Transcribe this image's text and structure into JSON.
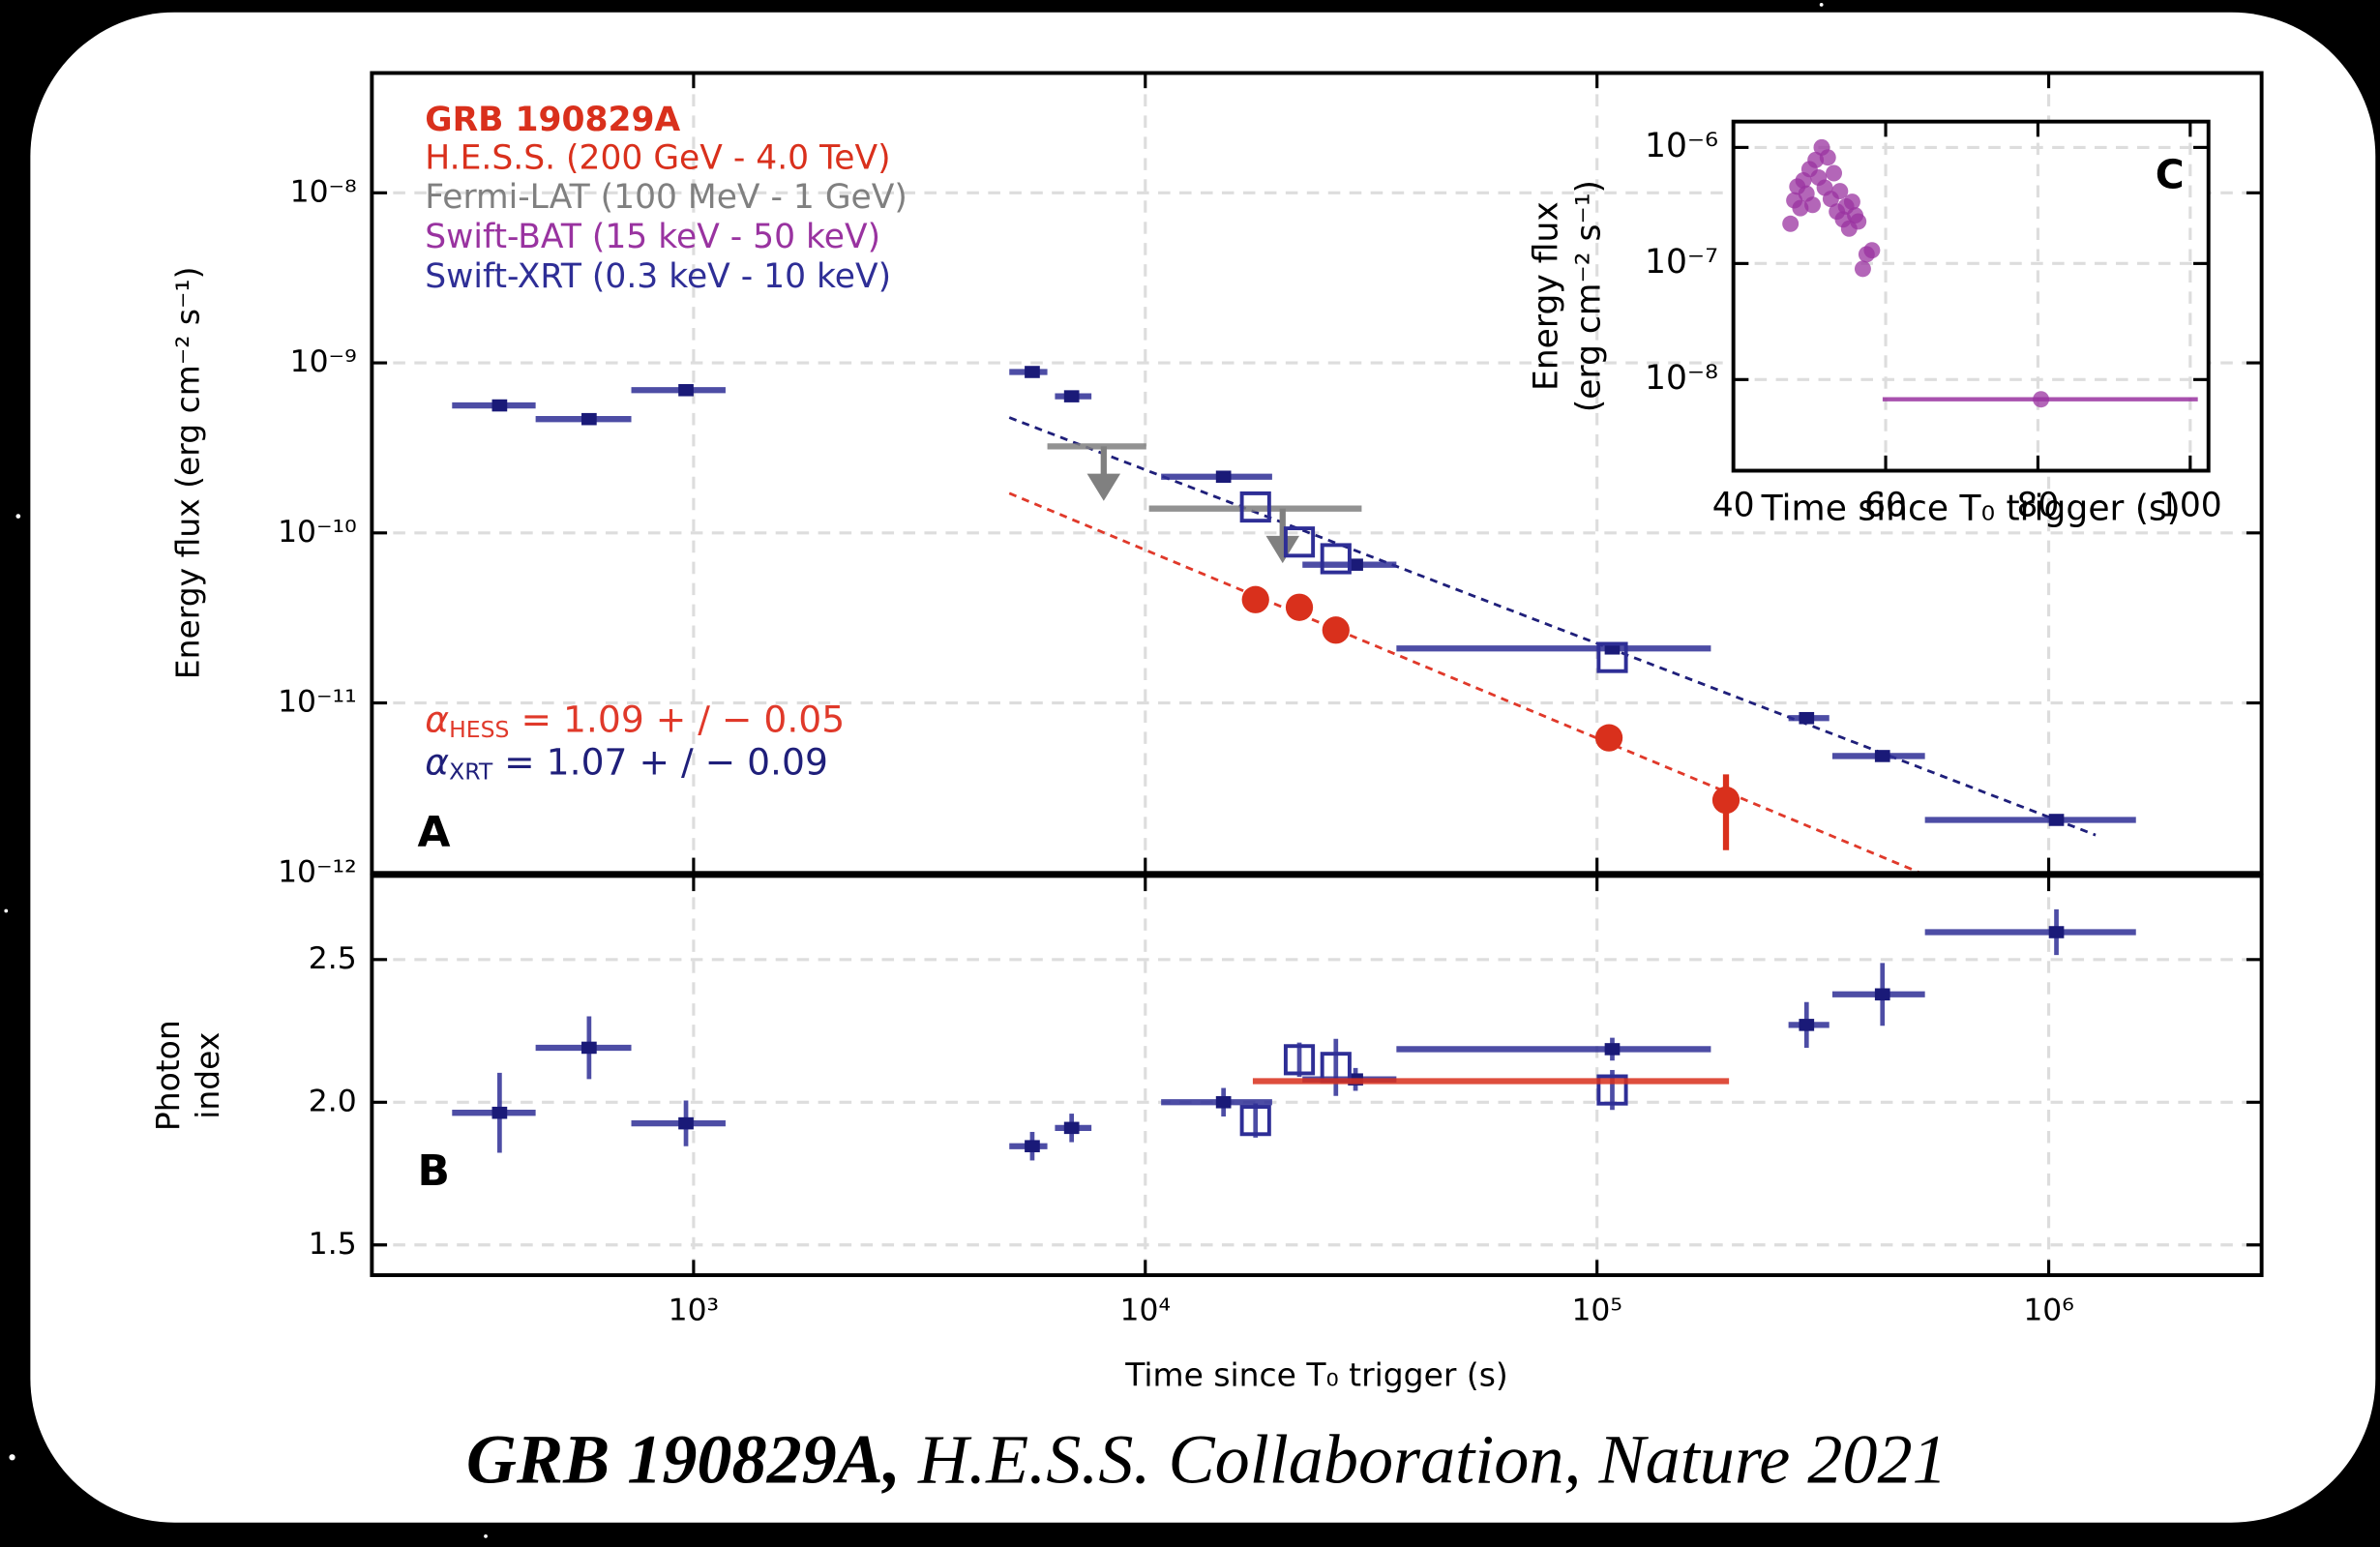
{
  "caption": {
    "title": "GRB 190829A,",
    "source": " H.E.S.S. Collaboration, Nature 2021"
  },
  "chart_data": [
    {
      "type": "scatter",
      "panel_label": "A",
      "legend_title": "GRB 190829A",
      "ylabel": "Energy flux (erg cm⁻² s⁻¹)",
      "xscale": "log",
      "yscale": "log",
      "grid": true,
      "xlim": [
        194,
        2960000
      ],
      "ylim": [
        1e-12,
        5.07e-08
      ],
      "yticks": [
        {
          "value": 1e-12,
          "label": "10⁻¹²"
        },
        {
          "value": 1e-11,
          "label": "10⁻¹¹"
        },
        {
          "value": 1e-10,
          "label": "10⁻¹⁰"
        },
        {
          "value": 1e-09,
          "label": "10⁻⁹"
        },
        {
          "value": 1e-08,
          "label": "10⁻⁸"
        }
      ],
      "series": [
        {
          "name": "H.E.S.S. (200 GeV - 4.0 TeV)",
          "color": "#d9301c",
          "marker": "circle",
          "x": [
            17540,
            21930,
            26420,
            106300,
            193000
          ],
          "values": [
            4.05e-11,
            3.65e-11,
            2.68e-11,
            6.23e-12,
            2.68e-12
          ],
          "y_low": [
            3.6e-11,
            3.2e-11,
            2.3e-11,
            5.5e-12,
            1.36e-12
          ],
          "y_high": [
            4.6e-11,
            4.1e-11,
            3.1e-11,
            7e-12,
            3.8e-12
          ]
        },
        {
          "name": "Fermi-LAT (100 MeV - 1 GeV)",
          "color": "#808080",
          "marker": "arrow",
          "x": [
            8090,
            20140
          ],
          "x_low": [
            6070,
            10190
          ],
          "x_high": [
            10050,
            30130
          ],
          "values": [
            3.23e-10,
            1.39e-10
          ]
        },
        {
          "name": "Swift-XRT (0.3 keV - 10 keV)",
          "color": "#2e2e96",
          "marker": "square",
          "x": [
            372,
            587,
            962,
            5620,
            6870,
            14900,
            29200,
            108100,
            291000,
            428500,
            1040000
          ],
          "x_low": [
            292,
            447,
            728,
            5000,
            6310,
            10840,
            22280,
            35970,
            265400,
            331900,
            532100
          ],
          "x_high": [
            447,
            728,
            1177,
            6070,
            7600,
            19090,
            35970,
            178700,
            326700,
            532100,
            1560000
          ],
          "values": [
            5.62e-10,
            4.67e-10,
            6.91e-10,
            8.84e-10,
            6.36e-10,
            2.14e-10,
            6.5e-11,
            2.09e-11,
            8.14e-12,
            4.87e-12,
            2.05e-12
          ]
        },
        {
          "color": "#2e2e96",
          "marker": "open-square",
          "x": [
            17540,
            21930,
            26420,
            108100
          ],
          "values": [
            1.42e-10,
            8.84e-11,
            7.05e-11,
            1.85e-11
          ]
        }
      ],
      "fits": [
        {
          "symbol": "α",
          "subscript": "HESS",
          "text": " = 1.09 + / − 0.05",
          "color": "#e0392a",
          "x": [
            5000,
            520000
          ],
          "values": [
            1.71e-10,
            1e-12
          ]
        },
        {
          "symbol": "α",
          "subscript": "XRT",
          "text": " = 1.07 + / − 0.09",
          "color": "#1f1f7a",
          "x": [
            5000,
            1270000
          ],
          "values": [
            4.77e-10,
            1.67e-12
          ]
        }
      ]
    },
    {
      "type": "scatter",
      "panel_label": "B",
      "ylabel": [
        "Photon",
        "index"
      ],
      "xlabel": "Time since T₀ trigger (s)",
      "xscale": "log",
      "yscale": "linear",
      "grid": true,
      "xlim": [
        194,
        2960000
      ],
      "ylim": [
        1.394,
        2.793
      ],
      "xticks": [
        {
          "value": 1000,
          "label": "10³"
        },
        {
          "value": 10000,
          "label": "10⁴"
        },
        {
          "value": 100000,
          "label": "10⁵"
        },
        {
          "value": 1000000,
          "label": "10⁶"
        }
      ],
      "yticks": [
        1.5,
        {
          "value": 2,
          "label": "2.0"
        },
        2.5
      ],
      "series": [
        {
          "color": "#2e2e96",
          "marker": "square",
          "x": [
            372,
            587,
            962,
            5620,
            6870,
            14900,
            29200,
            108100,
            291000,
            428500,
            1040000
          ],
          "x_low": [
            292,
            447,
            728,
            5000,
            6310,
            10840,
            22280,
            35970,
            265400,
            331900,
            532100
          ],
          "x_high": [
            447,
            728,
            1177,
            6070,
            7600,
            19090,
            35970,
            178700,
            326700,
            532100,
            1560000
          ],
          "values": [
            1.963,
            2.191,
            1.926,
            1.846,
            1.91,
            2.0,
            2.08,
            2.186,
            2.271,
            2.378,
            2.596
          ],
          "y_err": [
            0.14,
            0.11,
            0.08,
            0.05,
            0.05,
            0.05,
            0.04,
            0.04,
            0.08,
            0.11,
            0.08
          ]
        },
        {
          "color": "#2e2e96",
          "marker": "open-square",
          "x": [
            17540,
            21930,
            26420,
            108100
          ],
          "values": [
            1.936,
            2.149,
            2.122,
            2.043
          ],
          "y_err": [
            0.06,
            0.06,
            0.1,
            0.07
          ]
        },
        {
          "color": "#d9301c",
          "marker": "none",
          "x_low": [
            17300
          ],
          "x_high": [
            196000
          ],
          "values": [
            2.074
          ]
        }
      ]
    },
    {
      "type": "scatter",
      "panel_label": "C",
      "ylabel": [
        "Energy flux",
        "(erg cm⁻² s⁻¹)"
      ],
      "xlabel": "Time since T₀ trigger (s)",
      "xscale": "linear",
      "yscale": "log",
      "grid": true,
      "xlim": [
        40,
        102.4
      ],
      "ylim": [
        1.64e-09,
        1.67e-06
      ],
      "xticks": [
        40,
        60,
        80,
        100
      ],
      "yticks": [
        {
          "value": 1e-08,
          "label": "10⁻⁸"
        },
        {
          "value": 1e-07,
          "label": "10⁻⁷"
        },
        {
          "value": 1e-06,
          "label": "10⁻⁶"
        }
      ],
      "series": [
        {
          "name": "Swift-BAT (15 keV - 50 keV)",
          "color": "#9933a0",
          "marker": "circle",
          "x": [
            47.5,
            48.0,
            48.4,
            48.8,
            49.2,
            49.6,
            50.0,
            50.4,
            50.8,
            51.2,
            51.6,
            52.0,
            52.4,
            52.8,
            53.2,
            53.6,
            54.0,
            54.4,
            54.8,
            55.2,
            55.6,
            56.0,
            56.4,
            57.0,
            57.5,
            58.2
          ],
          "values": [
            2.2e-07,
            3.5e-07,
            4.6e-07,
            3e-07,
            5.2e-07,
            4e-07,
            6.5e-07,
            3.2e-07,
            7.8e-07,
            5.5e-07,
            1e-06,
            4.5e-07,
            8.2e-07,
            3.6e-07,
            6e-07,
            2.8e-07,
            4.2e-07,
            2.4e-07,
            3.1e-07,
            2e-07,
            3.4e-07,
            2.6e-07,
            2.3e-07,
            9e-08,
            1.2e-07,
            1.3e-07
          ]
        },
        {
          "color": "#9933a0",
          "marker": "circle",
          "x": [
            80.4
          ],
          "x_low": [
            59.6
          ],
          "x_high": [
            101
          ],
          "values": [
            6.76e-09
          ]
        }
      ]
    }
  ]
}
